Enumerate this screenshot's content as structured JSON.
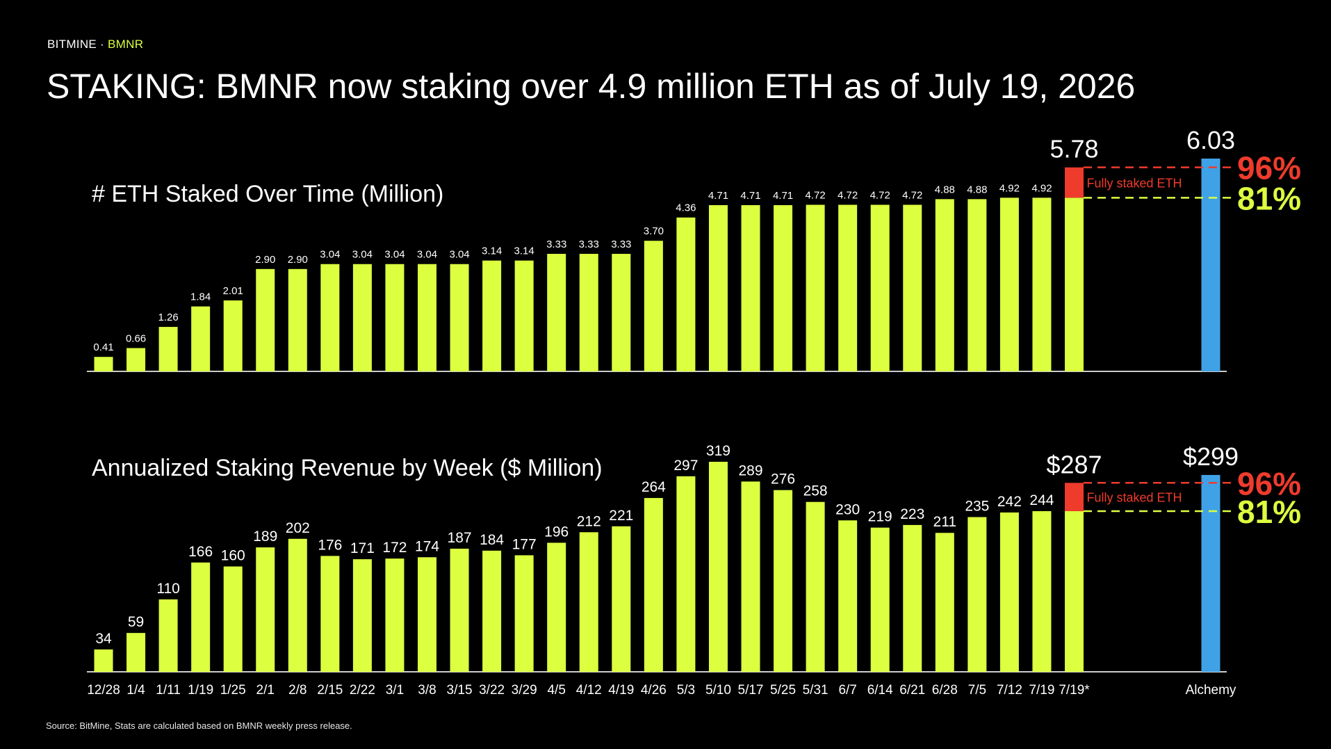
{
  "header": {
    "brand_company": "BITMINE",
    "brand_separator": "·",
    "brand_ticker": "BMNR",
    "title": "STAKING: BMNR now staking over 4.9 million ETH as of July 19, 2026"
  },
  "footer": {
    "source": "Source: BitMine, Stats are calculated based on BMNR weekly press release."
  },
  "colors": {
    "bar": "#dcff3f",
    "fully_staked": "#ef3b2c",
    "alchemy": "#3fa2e6",
    "pct96": "#ef3b2c",
    "pct81": "#dcff3f",
    "axis": "#cccccc"
  },
  "chart_data": [
    {
      "type": "bar",
      "title": "# ETH Staked Over Time (Million)",
      "categories": [
        "12/28",
        "1/4",
        "1/11",
        "1/19",
        "1/25",
        "2/1",
        "2/8",
        "2/15",
        "2/22",
        "3/1",
        "3/8",
        "3/15",
        "3/22",
        "3/29",
        "4/5",
        "4/12",
        "4/19",
        "4/26",
        "5/3",
        "5/10",
        "5/17",
        "5/25",
        "5/31",
        "6/7",
        "6/14",
        "6/21",
        "6/28",
        "7/5",
        "7/12",
        "7/19",
        "7/19*"
      ],
      "values": [
        0.41,
        0.66,
        1.26,
        1.84,
        2.01,
        2.9,
        2.9,
        3.04,
        3.04,
        3.04,
        3.04,
        3.04,
        3.14,
        3.14,
        3.33,
        3.33,
        3.33,
        3.7,
        4.36,
        4.71,
        4.71,
        4.71,
        4.72,
        4.72,
        4.72,
        4.72,
        4.88,
        4.88,
        4.92,
        4.92,
        4.92
      ],
      "labels": [
        "0.41",
        "0.66",
        "1.26",
        "1.84",
        "2.01",
        "2.90",
        "2.90",
        "3.04",
        "3.04",
        "3.04",
        "3.04",
        "3.04",
        "3.14",
        "3.14",
        "3.33",
        "3.33",
        "3.33",
        "3.70",
        "4.36",
        "4.71",
        "4.71",
        "4.71",
        "4.72",
        "4.72",
        "4.72",
        "4.72",
        "4.88",
        "4.88",
        "4.92",
        "4.92",
        ""
      ],
      "fully_staked": {
        "category": "7/19*",
        "value": 5.78,
        "label": "5.78",
        "note": "Fully staked ETH"
      },
      "comparison": {
        "category": "Alchemy",
        "value": 6.03,
        "label": "6.03"
      },
      "reference_lines": [
        {
          "label": "96%",
          "value": 5.78
        },
        {
          "label": "81%",
          "value": 4.92
        }
      ],
      "ylim": [
        0,
        6.03
      ]
    },
    {
      "type": "bar",
      "title": "Annualized Staking Revenue by Week ($ Million)",
      "categories": [
        "12/28",
        "1/4",
        "1/11",
        "1/19",
        "1/25",
        "2/1",
        "2/8",
        "2/15",
        "2/22",
        "3/1",
        "3/8",
        "3/15",
        "3/22",
        "3/29",
        "4/5",
        "4/12",
        "4/19",
        "4/26",
        "5/3",
        "5/10",
        "5/17",
        "5/25",
        "5/31",
        "6/7",
        "6/14",
        "6/21",
        "6/28",
        "7/5",
        "7/12",
        "7/19",
        "7/19*"
      ],
      "values": [
        34,
        59,
        110,
        166,
        160,
        189,
        202,
        176,
        171,
        172,
        174,
        187,
        184,
        177,
        196,
        212,
        221,
        264,
        297,
        319,
        289,
        276,
        258,
        230,
        219,
        223,
        211,
        235,
        242,
        244,
        244
      ],
      "labels": [
        "34",
        "59",
        "110",
        "166",
        "160",
        "189",
        "202",
        "176",
        "171",
        "172",
        "174",
        "187",
        "184",
        "177",
        "196",
        "212",
        "221",
        "264",
        "297",
        "319",
        "289",
        "276",
        "258",
        "230",
        "219",
        "223",
        "211",
        "235",
        "242",
        "244",
        ""
      ],
      "fully_staked": {
        "category": "7/19*",
        "value": 287,
        "label": "$287",
        "note": "Fully staked ETH"
      },
      "comparison": {
        "category": "Alchemy",
        "value": 299,
        "label": "$299"
      },
      "reference_lines": [
        {
          "label": "96%",
          "value": 287
        },
        {
          "label": "81%",
          "value": 244
        }
      ],
      "ylim": [
        0,
        319
      ]
    }
  ]
}
